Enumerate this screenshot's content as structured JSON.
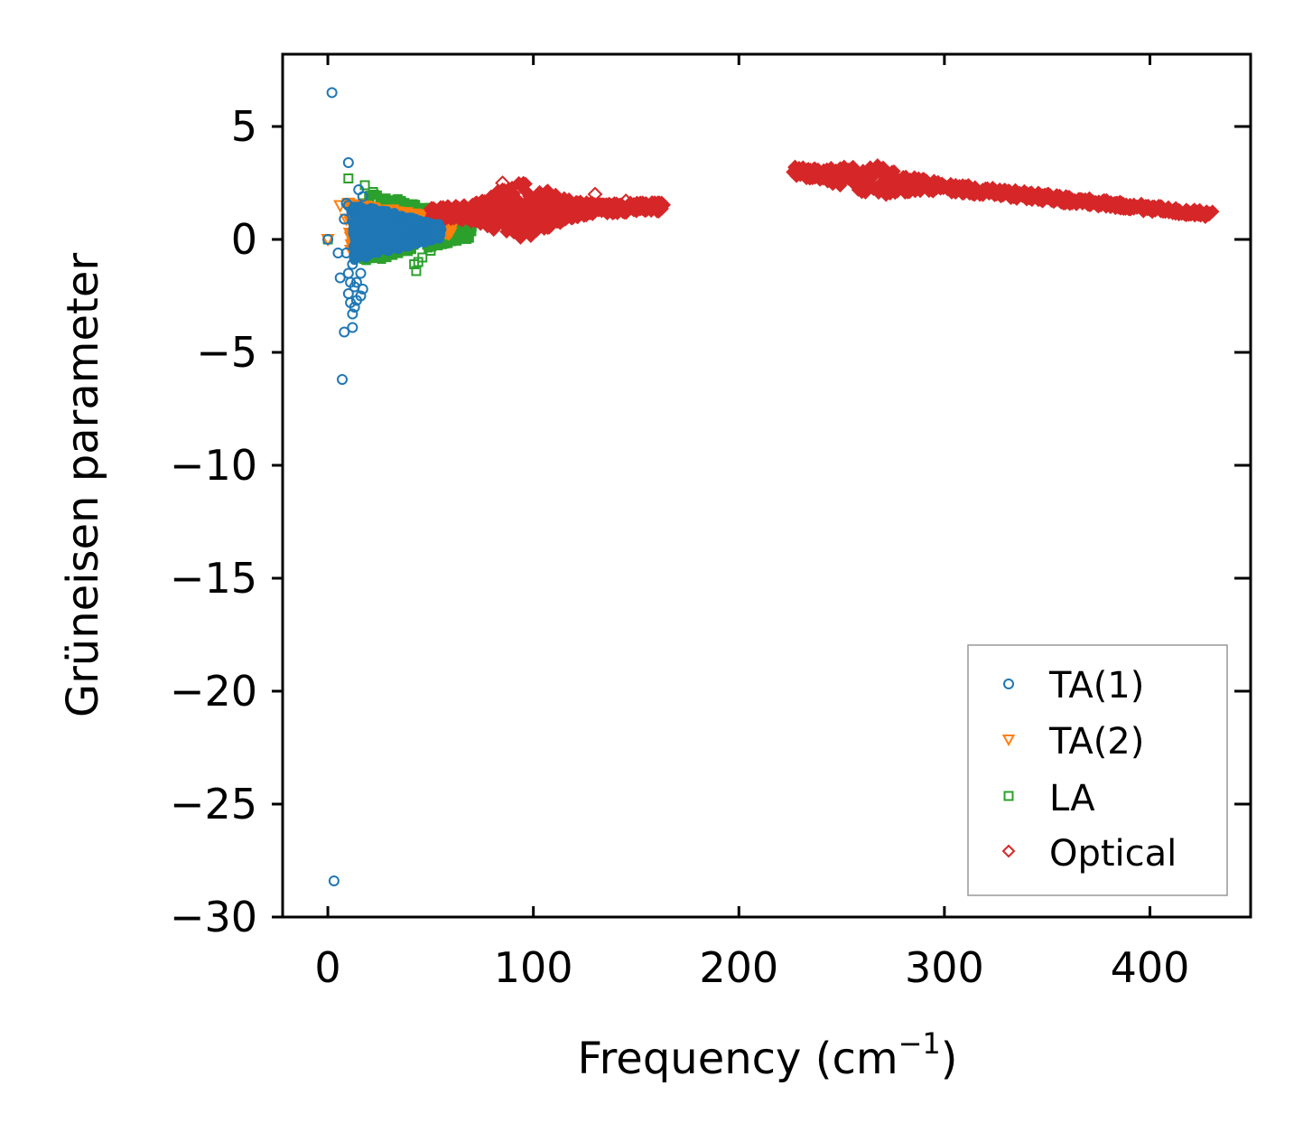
{
  "chart_data": {
    "type": "scatter",
    "title": "",
    "xlabel": "Frequency (cm",
    "xlabel_sup": "−1",
    "xlabel_close": ")",
    "ylabel": "Grüneisen parameter",
    "xlim": [
      -22,
      449
    ],
    "ylim": [
      -30,
      8.2
    ],
    "xticks": [
      0,
      100,
      200,
      300,
      400
    ],
    "xtick_labels": [
      "0",
      "100",
      "200",
      "300",
      "400"
    ],
    "yticks": [
      5,
      0,
      -5,
      -10,
      -15,
      -20,
      -25,
      -30
    ],
    "ytick_labels": [
      "5",
      "0",
      "−5",
      "−10",
      "−15",
      "−20",
      "−25",
      "−30"
    ],
    "grid": false,
    "legend_position": "lower-right",
    "series": [
      {
        "name": "TA(1)",
        "marker": "circle",
        "color": "#1f77b4",
        "x": [
          2,
          3,
          7,
          8,
          10,
          12,
          15,
          12,
          13,
          14,
          16,
          17,
          14,
          13,
          11,
          10,
          11,
          12,
          9,
          10,
          10,
          5,
          6,
          16,
          18,
          17,
          12,
          8,
          9,
          0
        ],
        "y": [
          6.5,
          -28.4,
          -6.2,
          -4.1,
          3.4,
          -3.9,
          2.2,
          -3.3,
          -3.0,
          -2.7,
          -2.5,
          -2.2,
          -1.9,
          -2.1,
          -2.8,
          -2.4,
          -1.9,
          -1.1,
          -0.6,
          -1.5,
          1.5,
          -0.6,
          -1.7,
          -1.5,
          -0.3,
          1.9,
          0.8,
          0.9,
          1.6,
          0.0
        ],
        "band": {
          "x_start": 12,
          "x_end": 55,
          "y_center": 0.35,
          "half_width_start": 1.3,
          "half_width_end": 0.3
        }
      },
      {
        "name": "TA(2)",
        "marker": "triangle-down",
        "color": "#ff7f0e",
        "x": [
          6,
          10,
          9,
          15,
          13,
          16,
          0
        ],
        "y": [
          1.5,
          1.6,
          0.9,
          -0.4,
          1.2,
          0.2,
          0.0
        ],
        "band": {
          "x_start": 10,
          "x_end": 60,
          "y_center": 0.55,
          "half_width_start": 1.1,
          "half_width_end": 0.35
        }
      },
      {
        "name": "LA",
        "marker": "square",
        "color": "#2ca02c",
        "x": [
          10,
          18,
          43,
          42,
          44,
          46,
          50,
          55,
          60,
          66,
          0,
          22
        ],
        "y": [
          2.7,
          2.4,
          -1.4,
          -1.1,
          -1.0,
          -0.8,
          -0.5,
          -0.2,
          0.2,
          0.6,
          0.0,
          2.1
        ],
        "band": {
          "x_start": 18,
          "x_end": 70,
          "y_center": 0.55,
          "half_width_start": 1.6,
          "half_width_end": 0.5
        }
      },
      {
        "name": "Optical",
        "marker": "diamond",
        "color": "#d62728",
        "x": [
          85,
          90,
          95,
          100,
          105,
          115,
          130,
          145,
          162
        ],
        "y": [
          2.5,
          2.0,
          1.2,
          0.8,
          1.5,
          1.8,
          2.0,
          1.7,
          1.4
        ],
        "bands": [
          {
            "x_start": 50,
            "x_end": 163,
            "y_start": 1.15,
            "y_end": 1.45,
            "half_width_start": 0.3,
            "half_width_end": 0.22,
            "hump_center": 95,
            "hump_half_width": 1.0
          },
          {
            "x_start": 226,
            "x_end": 430,
            "y_start": 3.0,
            "y_end": 1.1,
            "half_width_start": 0.25,
            "half_width_end": 0.15,
            "hump_center": 265,
            "hump_half_width": 0.45
          }
        ]
      }
    ]
  }
}
